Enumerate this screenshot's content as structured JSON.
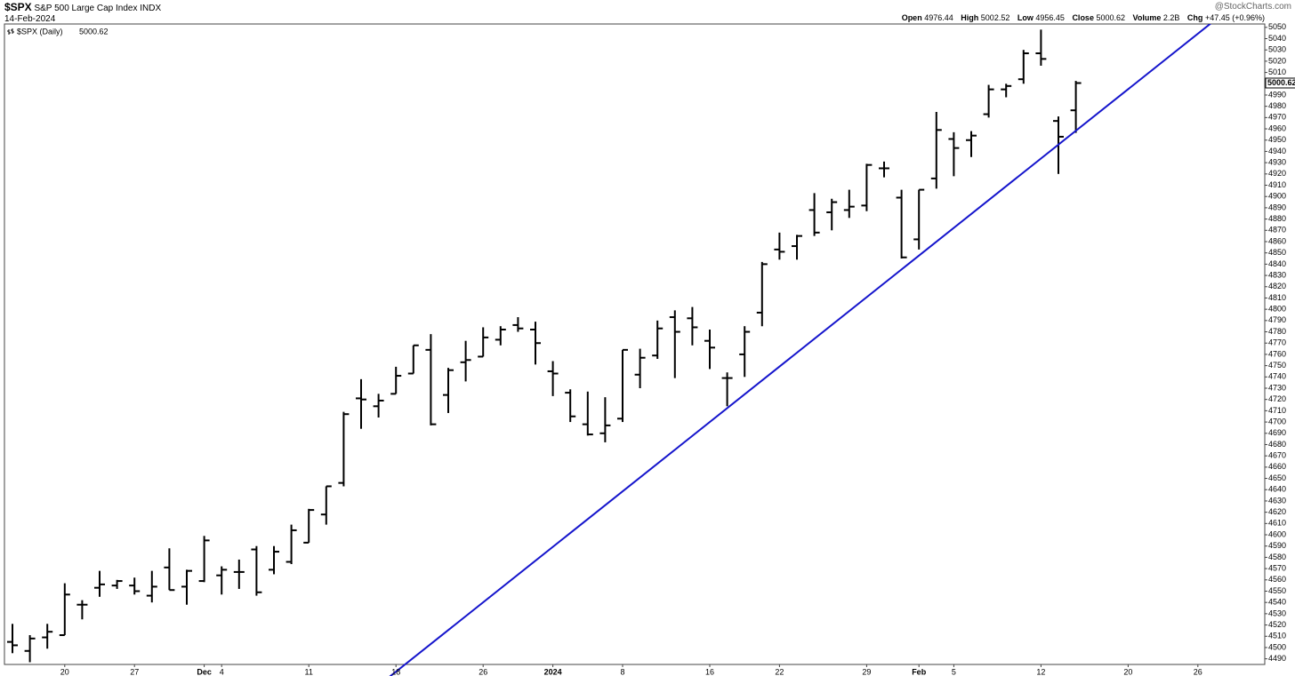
{
  "chart_data": {
    "type": "ohlc",
    "symbol": "$SPX",
    "title": "S&P 500 Large Cap Index",
    "exchange": "INDX",
    "date": "14-Feb-2024",
    "watermark": "@StockCharts.com",
    "series_name": "$SPX (Daily)",
    "header": {
      "open_label": "Open",
      "high_label": "High",
      "low_label": "Low",
      "close_label": "Close",
      "volume_label": "Volume",
      "volume": "2.2B",
      "change_label": "Chg",
      "change": "+47.45 (+0.96%)"
    },
    "color": "#000000",
    "categories": [
      null,
      null,
      null,
      "20",
      null,
      null,
      null,
      "27",
      null,
      null,
      null,
      "Dec",
      "4",
      null,
      null,
      null,
      null,
      "11",
      null,
      null,
      null,
      null,
      "18",
      null,
      null,
      null,
      null,
      "26",
      null,
      null,
      null,
      "2024",
      null,
      null,
      null,
      "8",
      null,
      null,
      null,
      null,
      "16",
      null,
      null,
      null,
      "22",
      null,
      null,
      null,
      null,
      "29",
      null,
      null,
      "Feb",
      null,
      "5",
      null,
      null,
      null,
      null,
      "12",
      null,
      null,
      null,
      null,
      "20",
      null,
      null,
      null,
      "26",
      null,
      null,
      null
    ],
    "open": [
      4505,
      4497,
      4509,
      4511,
      4538,
      4553,
      4555,
      4555,
      4546,
      4571,
      4554,
      4559,
      4564,
      4567,
      4587,
      4569,
      4576,
      4593,
      4618,
      4646,
      4721,
      4714,
      4725,
      4743,
      4764,
      4724,
      4753,
      4758,
      4773,
      4786,
      4782,
      4745,
      4726,
      4698,
      4690,
      4703,
      4742,
      4759,
      4793,
      4792,
      4772,
      4739,
      4760,
      4797,
      4853,
      4856,
      4888,
      4886,
      4888,
      4892,
      4925,
      4899,
      4862,
      4916,
      4951,
      4950,
      4973,
      4995,
      5004,
      5027,
      4967,
      4976.44,
      null,
      null,
      null,
      null,
      null,
      null,
      null,
      null,
      null,
      null
    ],
    "high": [
      4521,
      4511,
      4521,
      4557,
      4542,
      4568,
      4560,
      4562,
      4568,
      4588,
      4569,
      4599,
      4572,
      4578,
      4590,
      4590,
      4609,
      4623,
      4643,
      4709,
      4738,
      4725,
      4749,
      4768,
      4778,
      4748,
      4772,
      4784,
      4785,
      4793,
      4789,
      4754,
      4729,
      4727,
      4722,
      4764,
      4765,
      4790,
      4799,
      4802,
      4782,
      4744,
      4785,
      4842,
      4868,
      4866,
      4903,
      4898,
      4906,
      4929,
      4931,
      4906,
      4906,
      4975,
      4957,
      4958,
      4999,
      5000,
      5030,
      5048,
      4971,
      5002.52,
      null,
      null,
      null,
      null,
      null,
      null,
      null,
      null,
      null,
      null
    ],
    "low": [
      4495,
      4487,
      4499,
      4511,
      4525,
      4545,
      4552,
      4547,
      4540,
      4551,
      4538,
      4558,
      4547,
      4552,
      4546,
      4565,
      4574,
      4593,
      4609,
      4643,
      4694,
      4704,
      4725,
      4743,
      4697,
      4708,
      4736,
      4758,
      4768,
      4780,
      4751,
      4723,
      4700,
      4688,
      4682,
      4700,
      4730,
      4756,
      4739,
      4768,
      4747,
      4714,
      4740,
      4785,
      4844,
      4844,
      4865,
      4870,
      4881,
      4887,
      4917,
      4845,
      4853,
      4907,
      4918,
      4935,
      4970,
      4988,
      5000,
      5016,
      4920,
      4956.45,
      null,
      null,
      null,
      null,
      null,
      null,
      null,
      null,
      null,
      null
    ],
    "close": [
      4502,
      4508,
      4514,
      4547,
      4538,
      4556,
      4559,
      4550,
      4554,
      4551,
      4568,
      4595,
      4569,
      4567,
      4549,
      4585,
      4604,
      4622,
      4643,
      4707,
      4720,
      4719,
      4741,
      4768,
      4698,
      4746,
      4755,
      4775,
      4782,
      4783,
      4770,
      4743,
      4705,
      4689,
      4697,
      4764,
      4757,
      4783,
      4780,
      4784,
      4766,
      4739,
      4780,
      4840,
      4851,
      4865,
      4868,
      4895,
      4891,
      4928,
      4925,
      4846,
      4906,
      4959,
      4943,
      4954,
      4995,
      4998,
      5027,
      5022,
      4953,
      5000.62,
      null,
      null,
      null,
      null,
      null,
      null,
      null,
      null,
      null,
      null
    ],
    "ylim": [
      4485,
      5053
    ],
    "yticks": [
      4490,
      4500,
      4510,
      4520,
      4530,
      4540,
      4550,
      4560,
      4570,
      4580,
      4590,
      4600,
      4610,
      4620,
      4630,
      4640,
      4650,
      4660,
      4670,
      4680,
      4690,
      4700,
      4710,
      4720,
      4730,
      4740,
      4750,
      4760,
      4770,
      4780,
      4790,
      4800,
      4810,
      4820,
      4830,
      4840,
      4850,
      4860,
      4870,
      4880,
      4890,
      4900,
      4910,
      4920,
      4930,
      4940,
      4950,
      4960,
      4970,
      4980,
      4990,
      5000,
      5010,
      5020,
      5030,
      5040,
      5050
    ],
    "trendline": {
      "color": "#1515cc",
      "points": [
        [
          20,
          4454
        ],
        [
          70,
          5069
        ]
      ]
    },
    "grid": false
  }
}
